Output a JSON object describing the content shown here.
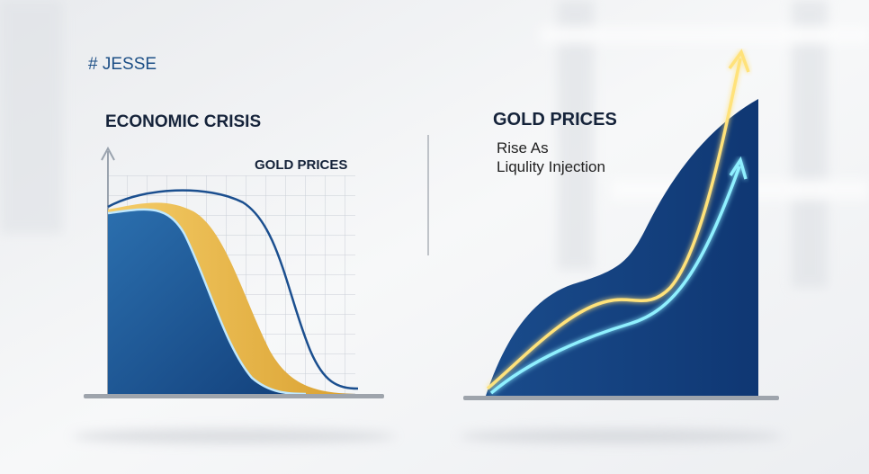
{
  "tag": "# JESSE",
  "left_panel": {
    "title": "ECONOMIC CRISIS",
    "chart_label": "GOLD PRICES"
  },
  "right_panel": {
    "title": "GOLD PRICES",
    "legend": [
      "Rise As",
      "Liqulity Injection"
    ]
  }
}
